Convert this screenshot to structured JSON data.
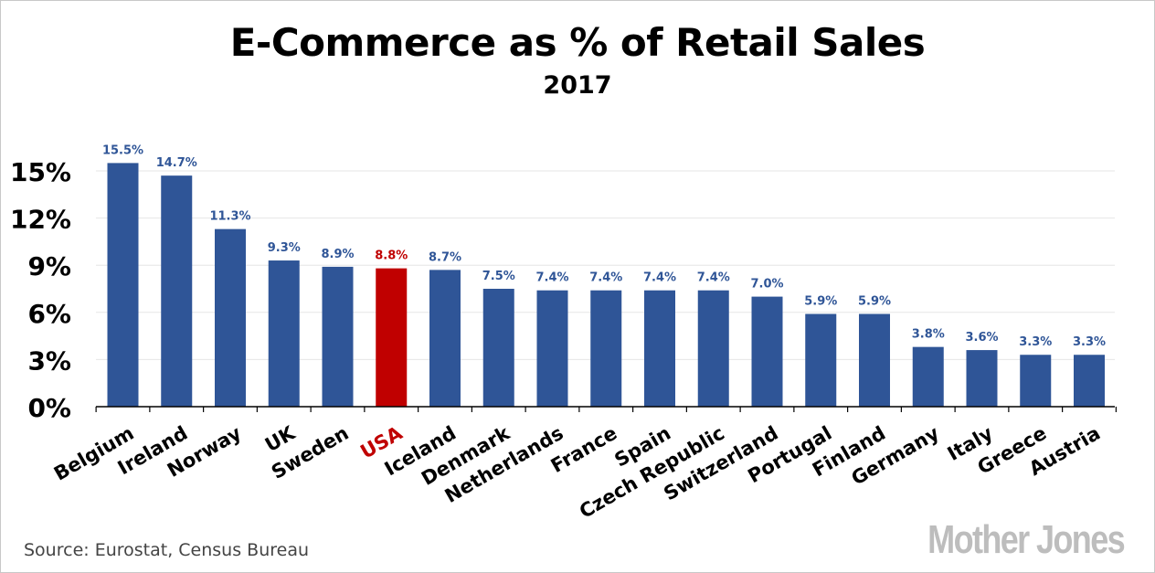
{
  "chart_data": {
    "type": "bar",
    "title": "E-Commerce as % of Retail Sales",
    "subtitle": "2017",
    "categories": [
      "Belgium",
      "Ireland",
      "Norway",
      "UK",
      "Sweden",
      "USA",
      "Iceland",
      "Denmark",
      "Netherlands",
      "France",
      "Spain",
      "Czech Republic",
      "Switzerland",
      "Portugal",
      "Finland",
      "Germany",
      "Italy",
      "Greece",
      "Austria"
    ],
    "values": [
      15.5,
      14.7,
      11.3,
      9.3,
      8.9,
      8.8,
      8.7,
      7.5,
      7.4,
      7.4,
      7.4,
      7.4,
      7.0,
      5.9,
      5.9,
      3.8,
      3.6,
      3.3,
      3.3
    ],
    "value_labels": [
      "15.5%",
      "14.7%",
      "11.3%",
      "9.3%",
      "8.9%",
      "8.8%",
      "8.7%",
      "7.5%",
      "7.4%",
      "7.4%",
      "7.4%",
      "7.4%",
      "7.0%",
      "5.9%",
      "5.9%",
      "3.8%",
      "3.6%",
      "3.3%",
      "3.3%"
    ],
    "highlight": "USA",
    "ylim": [
      0,
      16
    ],
    "yticks": [
      0,
      3,
      6,
      9,
      12,
      15
    ],
    "ytick_labels": [
      "0%",
      "3%",
      "6%",
      "9%",
      "12%",
      "15%"
    ],
    "xlabel": "",
    "ylabel": "",
    "grid": true,
    "colors": {
      "bar": "#2f5597",
      "highlight": "#c00000",
      "label": "#2f5597",
      "grid": "#e6e6e6"
    }
  },
  "source": "Source: Eurostat, Census Bureau",
  "logo": "Mother Jones"
}
